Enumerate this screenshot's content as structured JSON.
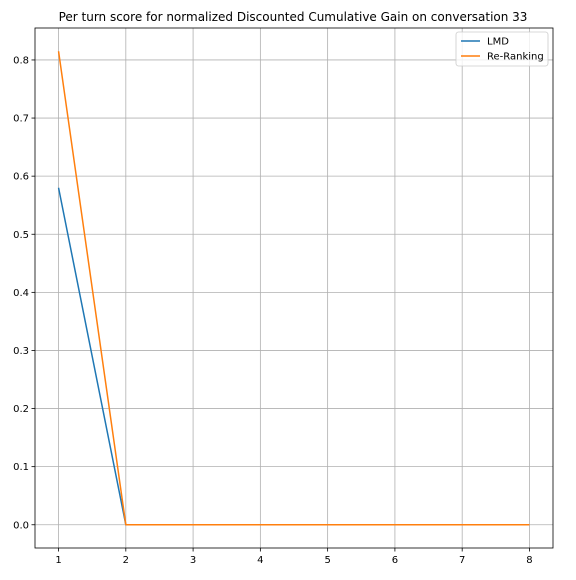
{
  "chart_data": {
    "type": "line",
    "title": "Per turn score for normalized Discounted Cumulative Gain on conversation 33",
    "xlabel": "",
    "ylabel": "",
    "x": [
      1,
      2,
      3,
      4,
      5,
      6,
      7,
      8
    ],
    "xlim": [
      0.65,
      8.35
    ],
    "ylim": [
      -0.04,
      0.855
    ],
    "xticks": [
      1,
      2,
      3,
      4,
      5,
      6,
      7,
      8
    ],
    "yticks": [
      0.0,
      0.1,
      0.2,
      0.3,
      0.4,
      0.5,
      0.6,
      0.7,
      0.8
    ],
    "ytick_labels": [
      "0.0",
      "0.1",
      "0.2",
      "0.3",
      "0.4",
      "0.5",
      "0.6",
      "0.7",
      "0.8"
    ],
    "grid": true,
    "legend_position": "top-right",
    "series": [
      {
        "name": "LMD",
        "color": "#1f77b4",
        "values": [
          0.58,
          0.0,
          0.0,
          0.0,
          0.0,
          0.0,
          0.0,
          0.0
        ]
      },
      {
        "name": "Re-Ranking",
        "color": "#ff7f0e",
        "values": [
          0.815,
          0.0,
          0.0,
          0.0,
          0.0,
          0.0,
          0.0,
          0.0
        ]
      }
    ]
  }
}
